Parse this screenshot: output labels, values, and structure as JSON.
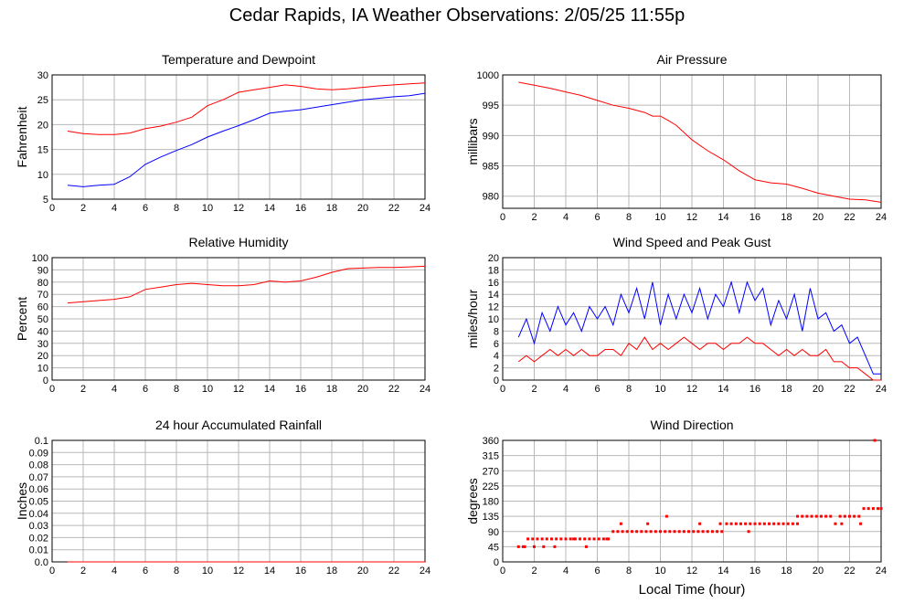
{
  "page": {
    "title": "Cedar Rapids, IA Weather Observations: 2/05/25 11:55p",
    "shared_xlabel": "Local Time (hour)"
  },
  "colors": {
    "red": "#ff0000",
    "blue": "#0000ff",
    "grid": "#b8b8b8"
  },
  "chart_data": [
    {
      "id": "temp",
      "type": "line",
      "title": "Temperature and Dewpoint",
      "ylabel": "Fahrenheit",
      "xlabel": "",
      "xlim": [
        0,
        24
      ],
      "ylim": [
        5,
        30
      ],
      "xticks": [
        0,
        2,
        4,
        6,
        8,
        10,
        12,
        14,
        16,
        18,
        20,
        22,
        24
      ],
      "yticks": [
        5,
        10,
        15,
        20,
        25,
        30
      ],
      "grid": true,
      "series": [
        {
          "color": "#ff0000",
          "style": "line",
          "x": [
            1,
            2,
            3,
            4,
            5,
            6,
            7,
            8,
            9,
            10,
            11,
            12,
            13,
            14,
            15,
            16,
            17,
            18,
            19,
            20,
            21,
            22,
            23,
            24
          ],
          "y": [
            18.7,
            18.2,
            18.0,
            18.0,
            18.3,
            19.2,
            19.7,
            20.5,
            21.5,
            23.8,
            25.0,
            26.5,
            27.0,
            27.5,
            28.0,
            27.7,
            27.2,
            27.0,
            27.2,
            27.5,
            27.8,
            28.0,
            28.2,
            28.4
          ]
        },
        {
          "color": "#0000ff",
          "style": "line",
          "x": [
            1,
            2,
            3,
            4,
            5,
            6,
            7,
            8,
            9,
            10,
            11,
            12,
            13,
            14,
            15,
            16,
            17,
            18,
            19,
            20,
            21,
            22,
            23,
            24
          ],
          "y": [
            7.8,
            7.5,
            7.8,
            8.0,
            9.5,
            12.0,
            13.5,
            14.8,
            16.0,
            17.5,
            18.7,
            19.8,
            21.0,
            22.3,
            22.7,
            23.0,
            23.5,
            24.0,
            24.5,
            25.0,
            25.3,
            25.6,
            25.8,
            26.3
          ]
        }
      ]
    },
    {
      "id": "pres",
      "type": "line",
      "title": "Air Pressure",
      "ylabel": "millibars",
      "xlabel": "",
      "xlim": [
        0,
        24
      ],
      "ylim": [
        978,
        1000
      ],
      "xticks": [
        0,
        2,
        4,
        6,
        8,
        10,
        12,
        14,
        16,
        18,
        20,
        22,
        24
      ],
      "yticks": [
        980,
        985,
        990,
        995,
        1000
      ],
      "grid": true,
      "series": [
        {
          "color": "#ff0000",
          "style": "line",
          "x": [
            1,
            2,
            3,
            4,
            5,
            6,
            7,
            8,
            9,
            9.5,
            10,
            10.5,
            11,
            12,
            13,
            14,
            15,
            16,
            17,
            18,
            19,
            20,
            21,
            22,
            23,
            24
          ],
          "y": [
            998.8,
            998.3,
            997.8,
            997.2,
            996.6,
            995.8,
            995.0,
            994.5,
            993.8,
            993.2,
            993.2,
            992.5,
            991.7,
            989.3,
            987.5,
            986.0,
            984.2,
            982.7,
            982.2,
            982.0,
            981.3,
            980.5,
            980.0,
            979.5,
            979.4,
            979.0
          ]
        }
      ]
    },
    {
      "id": "rh",
      "type": "line",
      "title": "Relative Humidity",
      "ylabel": "Percent",
      "xlabel": "",
      "xlim": [
        0,
        24
      ],
      "ylim": [
        0,
        100
      ],
      "xticks": [
        0,
        2,
        4,
        6,
        8,
        10,
        12,
        14,
        16,
        18,
        20,
        22,
        24
      ],
      "yticks": [
        0,
        10,
        20,
        30,
        40,
        50,
        60,
        70,
        80,
        90,
        100
      ],
      "grid": true,
      "series": [
        {
          "color": "#ff0000",
          "style": "line",
          "x": [
            1,
            2,
            3,
            4,
            5,
            6,
            7,
            8,
            9,
            10,
            11,
            12,
            13,
            14,
            15,
            16,
            17,
            18,
            19,
            20,
            21,
            22,
            23,
            24
          ],
          "y": [
            63,
            64,
            65,
            66,
            68,
            74,
            76,
            78,
            79,
            78,
            77,
            77,
            78,
            81,
            80,
            81,
            84,
            88,
            91,
            91.5,
            92,
            92,
            92.5,
            93
          ]
        }
      ]
    },
    {
      "id": "wind",
      "type": "line",
      "title": "Wind Speed and Peak Gust",
      "ylabel": "miles/hour",
      "xlabel": "",
      "xlim": [
        0,
        24
      ],
      "ylim": [
        0,
        20
      ],
      "xticks": [
        0,
        2,
        4,
        6,
        8,
        10,
        12,
        14,
        16,
        18,
        20,
        22,
        24
      ],
      "yticks": [
        0,
        2,
        4,
        6,
        8,
        10,
        12,
        14,
        16,
        18,
        20
      ],
      "grid": true,
      "series": [
        {
          "color": "#0000ff",
          "style": "line",
          "x": [
            1,
            1.5,
            2,
            2.5,
            3,
            3.5,
            4,
            4.5,
            5,
            5.5,
            6,
            6.5,
            7,
            7.5,
            8,
            8.5,
            9,
            9.5,
            10,
            10.5,
            11,
            11.5,
            12,
            12.5,
            13,
            13.5,
            14,
            14.5,
            15,
            15.5,
            16,
            16.5,
            17,
            17.5,
            18,
            18.5,
            19,
            19.5,
            20,
            20.5,
            21,
            21.5,
            22,
            22.5,
            23,
            23.5,
            24
          ],
          "y": [
            7,
            10,
            6,
            11,
            8,
            12,
            9,
            11,
            8,
            12,
            10,
            12,
            9,
            14,
            11,
            15,
            10,
            16,
            9,
            14,
            10,
            14,
            11,
            15,
            10,
            14,
            12,
            16,
            11,
            16,
            13,
            15,
            9,
            13,
            10,
            14,
            8,
            15,
            10,
            11,
            8,
            9,
            6,
            7,
            4,
            1,
            1
          ]
        },
        {
          "color": "#ff0000",
          "style": "line",
          "x": [
            1,
            1.5,
            2,
            2.5,
            3,
            3.5,
            4,
            4.5,
            5,
            5.5,
            6,
            6.5,
            7,
            7.5,
            8,
            8.5,
            9,
            9.5,
            10,
            10.5,
            11,
            11.5,
            12,
            12.5,
            13,
            13.5,
            14,
            14.5,
            15,
            15.5,
            16,
            16.5,
            17,
            17.5,
            18,
            18.5,
            19,
            19.5,
            20,
            20.5,
            21,
            21.5,
            22,
            22.5,
            23,
            23.5,
            24
          ],
          "y": [
            3,
            4,
            3,
            4,
            5,
            4,
            5,
            4,
            5,
            4,
            4,
            5,
            5,
            4,
            6,
            5,
            7,
            5,
            6,
            5,
            6,
            7,
            6,
            5,
            6,
            6,
            5,
            6,
            6,
            7,
            6,
            6,
            5,
            4,
            5,
            4,
            5,
            4,
            4,
            5,
            3,
            3,
            2,
            2,
            1,
            0,
            0
          ]
        }
      ]
    },
    {
      "id": "rain",
      "type": "line",
      "title": "24 hour Accumulated Rainfall",
      "ylabel": "Inches",
      "xlabel": "",
      "xlim": [
        0,
        24
      ],
      "ylim": [
        0,
        0.1
      ],
      "xticks": [
        0,
        2,
        4,
        6,
        8,
        10,
        12,
        14,
        16,
        18,
        20,
        22,
        24
      ],
      "yticks": [
        0,
        0.01,
        0.02,
        0.03,
        0.04,
        0.05,
        0.06,
        0.07,
        0.08,
        0.09,
        0.1
      ],
      "ytick_labels": [
        "0.0",
        "0.01",
        "0.02",
        "0.03",
        "0.04",
        "0.05",
        "0.06",
        "0.07",
        "0.08",
        "0.09",
        "0.1"
      ],
      "grid": true,
      "series": [
        {
          "color": "#ff0000",
          "style": "line",
          "x": [
            1,
            24
          ],
          "y": [
            0,
            0
          ]
        }
      ]
    },
    {
      "id": "dir",
      "type": "scatter",
      "title": "Wind Direction",
      "ylabel": "degrees",
      "xlabel": "Local Time (hour)",
      "xlim": [
        0,
        24
      ],
      "ylim": [
        0,
        360
      ],
      "xticks": [
        0,
        2,
        4,
        6,
        8,
        10,
        12,
        14,
        16,
        18,
        20,
        22,
        24
      ],
      "yticks": [
        0,
        45,
        90,
        135,
        180,
        225,
        270,
        315,
        360
      ],
      "grid": true,
      "series": [
        {
          "color": "#ff0000",
          "style": "points",
          "x": [
            1,
            1.3,
            1.6,
            1.9,
            2.2,
            2.5,
            2.8,
            3.1,
            3.4,
            3.7,
            4.0,
            4.3,
            4.6,
            4.9,
            5.2,
            5.5,
            5.8,
            6.1,
            6.4,
            6.7,
            7.0,
            7.3,
            7.6,
            7.9,
            8.2,
            8.5,
            8.8,
            9.1,
            9.4,
            9.7,
            10.0,
            10.3,
            10.6,
            10.9,
            11.2,
            11.5,
            11.8,
            12.1,
            12.4,
            12.7,
            13.0,
            13.3,
            13.6,
            13.9,
            14.2,
            14.5,
            14.8,
            15.1,
            15.4,
            15.7,
            16.0,
            16.3,
            16.6,
            16.9,
            17.2,
            17.5,
            17.8,
            18.1,
            18.4,
            18.7,
            19.0,
            19.3,
            19.6,
            19.9,
            20.2,
            20.5,
            20.8,
            21.1,
            21.4,
            21.7,
            22.0,
            22.3,
            22.6,
            22.9,
            23.2,
            23.5,
            23.8,
            24.0,
            1.4,
            2.0,
            2.6,
            3.3,
            4.5,
            5.3,
            6.6,
            7.5,
            9.2,
            10.4,
            12.5,
            13.8,
            15.6,
            18.7,
            21.5,
            22.7,
            23.6
          ],
          "y": [
            45,
            45,
            68,
            68,
            68,
            68,
            68,
            68,
            68,
            68,
            68,
            68,
            68,
            68,
            68,
            68,
            68,
            68,
            68,
            68,
            90,
            90,
            90,
            90,
            90,
            90,
            90,
            90,
            90,
            90,
            90,
            90,
            90,
            90,
            90,
            90,
            90,
            90,
            90,
            90,
            90,
            90,
            90,
            90,
            113,
            113,
            113,
            113,
            113,
            113,
            113,
            113,
            113,
            113,
            113,
            113,
            113,
            113,
            113,
            113,
            135,
            135,
            135,
            135,
            135,
            135,
            135,
            113,
            135,
            135,
            135,
            135,
            135,
            158,
            158,
            158,
            158,
            158,
            45,
            45,
            45,
            45,
            68,
            45,
            68,
            113,
            113,
            135,
            113,
            113,
            90,
            135,
            113,
            113,
            360
          ]
        }
      ]
    }
  ]
}
